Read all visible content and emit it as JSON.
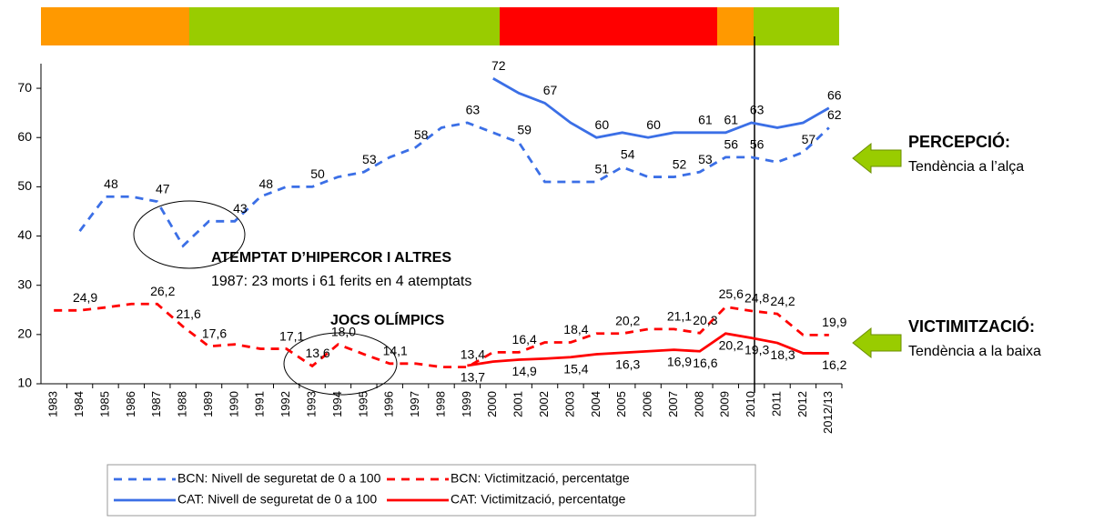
{
  "chart_data": {
    "type": "line",
    "categories": [
      "1983",
      "1984",
      "1985",
      "1986",
      "1987",
      "1988",
      "1989",
      "1990",
      "1991",
      "1992",
      "1993",
      "1994",
      "1995",
      "1996",
      "1997",
      "1998",
      "1999",
      "2000",
      "2001",
      "2002",
      "2003",
      "2004",
      "2005",
      "2006",
      "2007",
      "2008",
      "2009",
      "2010",
      "2011",
      "2012",
      "2012/13"
    ],
    "ylim": [
      10,
      75
    ],
    "yticks": [
      10,
      20,
      30,
      40,
      50,
      60,
      70
    ],
    "grid": false,
    "series": [
      {
        "name": "BCN: Nivell de seguretat de 0 a 100",
        "color": "#3b6fe6",
        "dashed": true,
        "values": [
          null,
          41,
          48,
          48,
          47,
          38,
          43,
          43,
          48,
          50,
          50,
          52,
          53,
          56,
          58,
          62,
          63,
          61,
          59,
          51,
          51,
          51,
          54,
          52,
          52,
          53,
          56,
          56,
          55,
          57,
          62
        ],
        "value_labels": [
          null,
          null,
          "48",
          null,
          "47",
          null,
          null,
          "43",
          "48",
          null,
          "50",
          null,
          "53",
          null,
          "58",
          null,
          "63",
          null,
          "59",
          null,
          null,
          "51",
          "54",
          null,
          "52",
          "53",
          "56",
          "56",
          null,
          "57",
          "62"
        ]
      },
      {
        "name": "CAT: Nivell de seguretat de 0 a 100",
        "color": "#3b6fe6",
        "dashed": false,
        "values": [
          null,
          null,
          null,
          null,
          null,
          null,
          null,
          null,
          null,
          null,
          null,
          null,
          null,
          null,
          null,
          null,
          null,
          72,
          69,
          67,
          63,
          60,
          61,
          60,
          61,
          61,
          61,
          63,
          62,
          63,
          66
        ],
        "value_labels": [
          null,
          null,
          null,
          null,
          null,
          null,
          null,
          null,
          null,
          null,
          null,
          null,
          null,
          null,
          null,
          null,
          null,
          "72",
          null,
          "67",
          null,
          "60",
          null,
          "60",
          null,
          "61",
          "61",
          "63",
          null,
          null,
          "66"
        ]
      },
      {
        "name": "BCN: Victimització, percentatge",
        "color": "#ff0000",
        "dashed": true,
        "values": [
          24.9,
          24.9,
          25.5,
          26.2,
          26.2,
          21.6,
          17.6,
          18.0,
          17.1,
          17.1,
          13.6,
          18.0,
          16.0,
          14.1,
          14.1,
          13.4,
          13.4,
          16.4,
          16.4,
          18.4,
          18.4,
          20.2,
          20.2,
          21.1,
          21.1,
          20.3,
          25.6,
          24.8,
          24.2,
          19.9,
          19.9
        ],
        "value_labels": [
          null,
          "24,9",
          null,
          null,
          "26,2",
          "21,6",
          "17,6",
          null,
          null,
          "17,1",
          "13,6",
          "18,0",
          null,
          "14,1",
          null,
          null,
          "13,4",
          null,
          "16,4",
          null,
          "18,4",
          null,
          "20,2",
          null,
          "21,1",
          "20,3",
          "25,6",
          "24,8",
          "24,2",
          null,
          "19,9"
        ]
      },
      {
        "name": "CAT: Victimització, percentatge",
        "color": "#ff0000",
        "dashed": false,
        "values": [
          null,
          null,
          null,
          null,
          null,
          null,
          null,
          null,
          null,
          null,
          null,
          null,
          null,
          null,
          null,
          null,
          13.7,
          14.5,
          14.9,
          15.1,
          15.4,
          16.0,
          16.3,
          16.6,
          16.9,
          16.6,
          20.2,
          19.3,
          18.3,
          16.2,
          16.2
        ],
        "value_labels": [
          null,
          null,
          null,
          null,
          null,
          null,
          null,
          null,
          null,
          null,
          null,
          null,
          null,
          null,
          null,
          null,
          "13,7",
          null,
          "14,9",
          null,
          "15,4",
          null,
          "16,3",
          null,
          "16,9",
          "16,6",
          "20,2",
          "19,3",
          "18,3",
          null,
          "16,2"
        ]
      }
    ],
    "annotations": [
      "ATEMPTAT D’HIPERCOR I ALTRES",
      "1987: 23 morts i 61 ferits en 4 atemptats",
      "JOCS OLÍMPICS"
    ],
    "side_notes": [
      {
        "title": "PERCEPCIÓ:",
        "text": "Tendència a l’alça"
      },
      {
        "title": "VICTIMITZACIÓ:",
        "text": "Tendència a la baixa"
      }
    ]
  }
}
